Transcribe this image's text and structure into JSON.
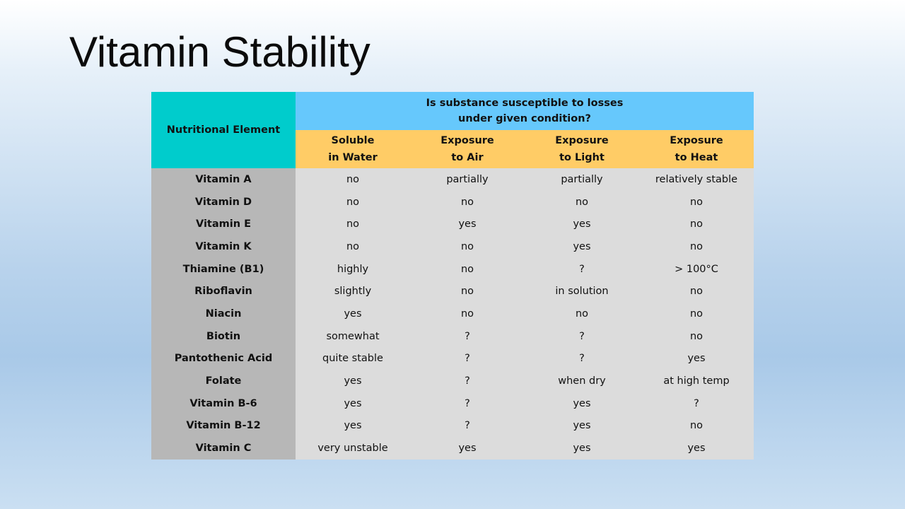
{
  "slide": {
    "title": "Vitamin Stability"
  },
  "table": {
    "corner_header": "Nutritional Element",
    "question_line1": "Is substance susceptible to losses",
    "question_line2": "under given condition?",
    "columns": [
      {
        "line1": "Soluble",
        "line2": "in Water"
      },
      {
        "line1": "Exposure",
        "line2": "to Air"
      },
      {
        "line1": "Exposure",
        "line2": "to Light"
      },
      {
        "line1": "Exposure",
        "line2": "to Heat"
      }
    ],
    "rows": [
      {
        "name": "Vitamin A",
        "values": [
          "no",
          "partially",
          "partially",
          "relatively stable"
        ]
      },
      {
        "name": "Vitamin D",
        "values": [
          "no",
          "no",
          "no",
          "no"
        ]
      },
      {
        "name": "Vitamin E",
        "values": [
          "no",
          "yes",
          "yes",
          "no"
        ]
      },
      {
        "name": "Vitamin K",
        "values": [
          "no",
          "no",
          "yes",
          "no"
        ]
      },
      {
        "name": "Thiamine (B1)",
        "values": [
          "highly",
          "no",
          "?",
          "> 100°C"
        ]
      },
      {
        "name": "Riboflavin",
        "values": [
          "slightly",
          "no",
          "in solution",
          "no"
        ]
      },
      {
        "name": "Niacin",
        "values": [
          "yes",
          "no",
          "no",
          "no"
        ]
      },
      {
        "name": "Biotin",
        "values": [
          "somewhat",
          "?",
          "?",
          "no"
        ]
      },
      {
        "name": "Pantothenic Acid",
        "values": [
          "quite stable",
          "?",
          "?",
          "yes"
        ]
      },
      {
        "name": "Folate",
        "values": [
          "yes",
          "?",
          "when dry",
          "at high temp"
        ]
      },
      {
        "name": "Vitamin B-6",
        "values": [
          "yes",
          "?",
          "yes",
          "?"
        ]
      },
      {
        "name": "Vitamin B-12",
        "values": [
          "yes",
          "?",
          "yes",
          "no"
        ]
      },
      {
        "name": "Vitamin C",
        "values": [
          "very unstable",
          "yes",
          "yes",
          "yes"
        ]
      }
    ]
  },
  "colors": {
    "corner_header": "#00cccc",
    "question_header": "#66c8fc",
    "column_header": "#ffcc66",
    "name_cell": "#b7b7b7",
    "value_cell": "#dcdcdc"
  }
}
